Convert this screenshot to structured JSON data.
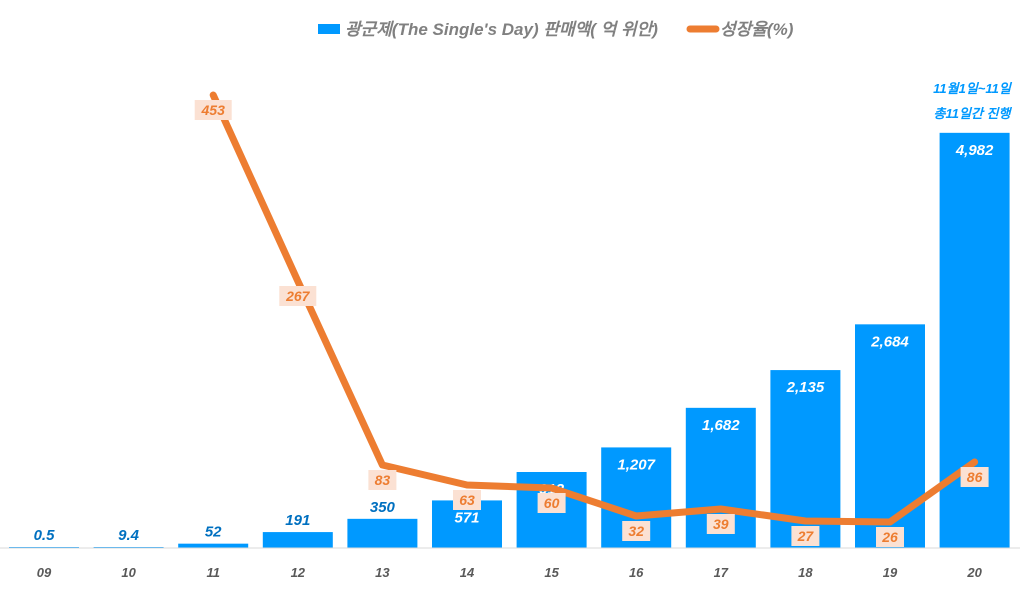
{
  "chart_data": {
    "type": "bar+line",
    "categories": [
      "09",
      "10",
      "11",
      "12",
      "13",
      "14",
      "15",
      "16",
      "17",
      "18",
      "19",
      "20"
    ],
    "series": [
      {
        "name": "광군제(The Single's Day) 판매액( 억 위안)",
        "type": "bar",
        "color": "#0099FF",
        "values": [
          0.5,
          9.4,
          52,
          191,
          350,
          571,
          912,
          1207,
          1682,
          2135,
          2684,
          4982
        ],
        "labels": [
          "0.5",
          "9.4",
          "52",
          "191",
          "350",
          "571",
          "912",
          "1,207",
          "1,682",
          "2,135",
          "2,684",
          "4,982"
        ]
      },
      {
        "name": "성장율(%)",
        "type": "line",
        "color": "#ED7D31",
        "values": [
          null,
          null,
          453,
          267,
          83,
          63,
          60,
          32,
          39,
          27,
          26,
          86
        ]
      }
    ],
    "ylim_bar": [
      0,
      6000
    ],
    "ylim_line": [
      0,
      500
    ],
    "grid": false,
    "legend": "top-center",
    "annotation": [
      "11월1일~11일",
      "총11일간 진행"
    ]
  }
}
